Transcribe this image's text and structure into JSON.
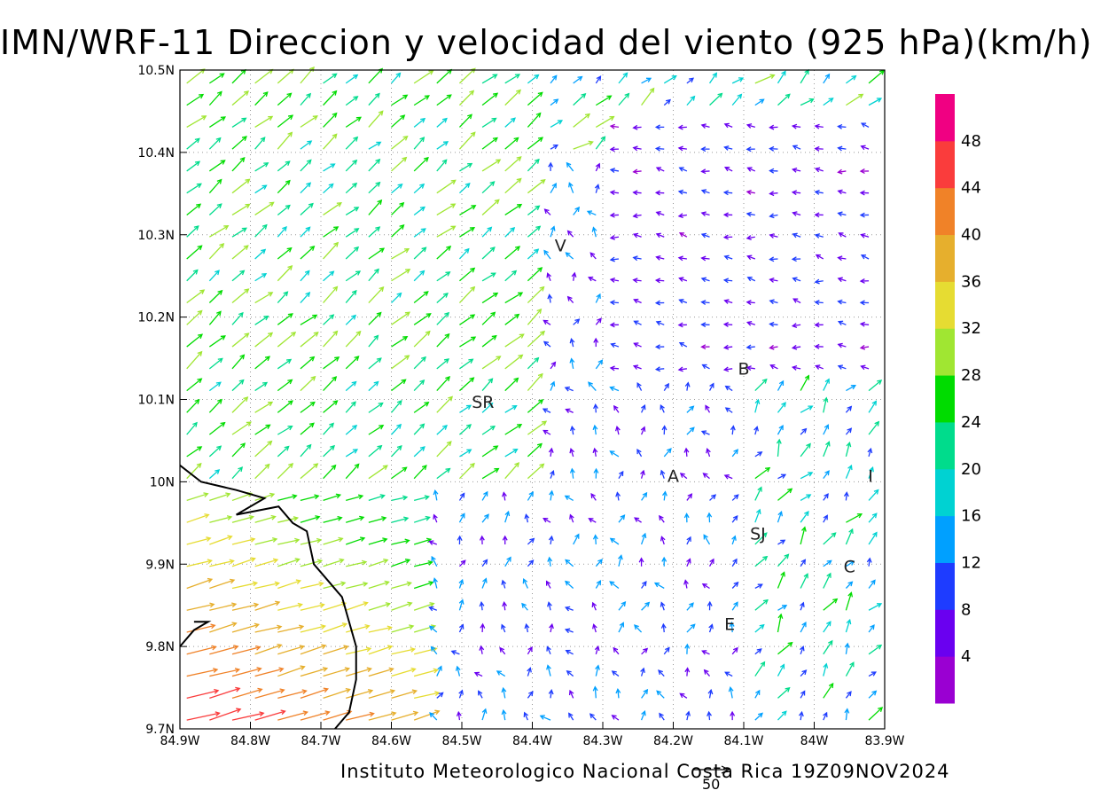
{
  "title": "IMN/WRF-11 Direccion y velocidad del viento (925 hPa)(km/h)",
  "footer": "Instituto Meteorologico Nacional Costa Rica 19Z09NOV2024",
  "reference_vector": {
    "label": "50",
    "speed_kmh": 50
  },
  "colors": {
    "scale": [
      "#9a00d2",
      "#6a00f0",
      "#1e3cff",
      "#00a0ff",
      "#00d2d2",
      "#00dc8c",
      "#00dc00",
      "#a0e632",
      "#e6dc32",
      "#e6af2d",
      "#f08228",
      "#fa3c3c",
      "#f00082"
    ]
  },
  "map": {
    "lon_range": [
      -84.9,
      -83.9
    ],
    "lat_range": [
      9.7,
      10.5
    ],
    "x_ticks": [
      "84.9W",
      "84.8W",
      "84.7W",
      "84.6W",
      "84.5W",
      "84.4W",
      "84.3W",
      "84.2W",
      "84.1W",
      "84W",
      "83.9W"
    ],
    "y_ticks": [
      "9.7N",
      "9.8N",
      "9.9N",
      "10N",
      "10.1N",
      "10.2N",
      "10.3N",
      "10.4N",
      "10.5N"
    ],
    "grid": "dotted",
    "places": [
      {
        "label": "V",
        "lon": -84.36,
        "lat": 10.28
      },
      {
        "label": "SR",
        "lon": -84.47,
        "lat": 10.09
      },
      {
        "label": "B",
        "lon": -84.1,
        "lat": 10.13
      },
      {
        "label": "A",
        "lon": -84.2,
        "lat": 10.0
      },
      {
        "label": "I",
        "lon": -83.92,
        "lat": 10.0
      },
      {
        "label": "SJ",
        "lon": -84.08,
        "lat": 9.93
      },
      {
        "label": "C",
        "lon": -83.95,
        "lat": 9.89
      },
      {
        "label": "E",
        "lon": -84.12,
        "lat": 9.82
      }
    ],
    "coastline": [
      [
        -84.9,
        10.02
      ],
      [
        -84.87,
        10.0
      ],
      [
        -84.82,
        9.99
      ],
      [
        -84.78,
        9.98
      ],
      [
        -84.82,
        9.96
      ],
      [
        -84.76,
        9.97
      ],
      [
        -84.74,
        9.95
      ],
      [
        -84.72,
        9.94
      ],
      [
        -84.71,
        9.9
      ],
      [
        -84.69,
        9.88
      ],
      [
        -84.67,
        9.86
      ],
      [
        -84.66,
        9.83
      ],
      [
        -84.65,
        9.8
      ],
      [
        -84.65,
        9.76
      ],
      [
        -84.66,
        9.72
      ],
      [
        -84.68,
        9.7
      ]
    ],
    "islet": [
      [
        -84.9,
        9.8
      ],
      [
        -84.88,
        9.82
      ],
      [
        -84.86,
        9.83
      ],
      [
        -84.88,
        9.83
      ]
    ]
  },
  "colorbar": {
    "labels": [
      "4",
      "8",
      "12",
      "16",
      "20",
      "24",
      "28",
      "32",
      "36",
      "40",
      "44",
      "48"
    ],
    "bounds": [
      0,
      52
    ]
  }
}
